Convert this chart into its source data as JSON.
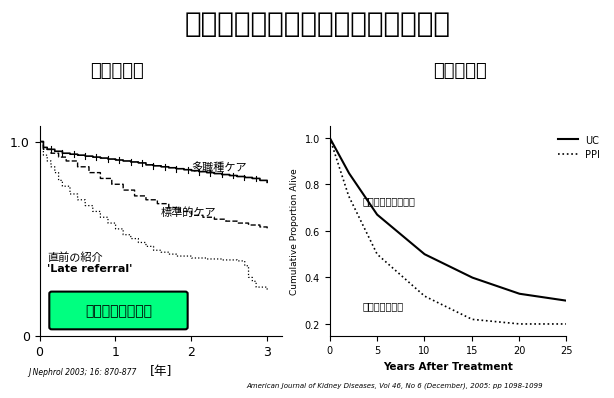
{
  "title": "多職種チーム医療は生命予後も改善",
  "left_subtitle": "短期生存率",
  "right_subtitle": "長期生存率",
  "left_xlabel": "[年]",
  "left_ylabel_tick": "1.0",
  "left_xticks": [
    0,
    1,
    2,
    3
  ],
  "left_yticks": [
    0,
    1.0
  ],
  "left_annotation1": "多職種ケア",
  "left_annotation2": "標準的ケア",
  "left_annotation3": "直前の紹介",
  "left_annotation4": "'Late referral'",
  "left_box_text": "多職種＞医師のみ",
  "right_ylabel": "Cumulative Proportion Alive",
  "right_xlabel": "Years After Treatment",
  "right_xticks": [
    0,
    5,
    10,
    15,
    20,
    25
  ],
  "right_yticks": [
    0.2,
    0.4,
    0.6,
    0.8,
    1.0
  ],
  "right_legend_UC": "UC",
  "right_legend_PPI": "PPI",
  "right_annotation_upper": "多職種の保存期ケア",
  "right_annotation_lower": "医師単独のケア",
  "left_ref": "J Nephrol 2003; 16: 870-877",
  "right_ref": "American Journal of Kidney Diseases, Vol 46, No 6 (December), 2005: pp 1098-1099",
  "background_color": "#ffffff",
  "title_fontsize": 20,
  "subtitle_fontsize": 13,
  "box_color": "#00ff80"
}
